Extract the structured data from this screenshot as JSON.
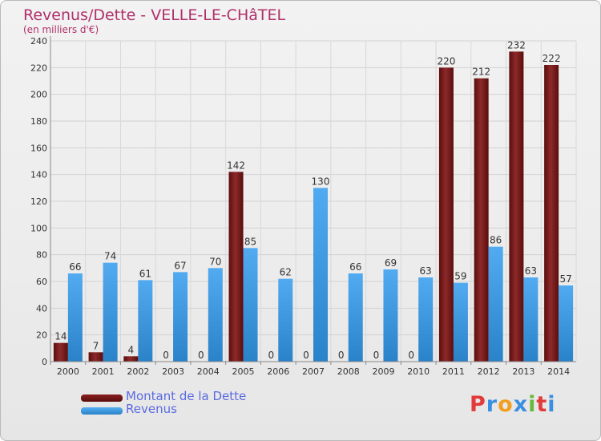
{
  "header": {
    "title": "Revenus/Dette - VELLE-LE-CHâTEL",
    "subtitle": "(en milliers d'€)"
  },
  "legend": {
    "items": [
      {
        "label": "Montant de la Dette",
        "color": "#7a1a1a"
      },
      {
        "label": "Revenus",
        "color": "#3d9de6"
      }
    ]
  },
  "logo": {
    "letters": [
      "P",
      "r",
      "o",
      "x",
      "i",
      "t",
      "i"
    ],
    "colors": [
      "#e23b3b",
      "#3b8fe2",
      "#f0a020",
      "#3b8fe2",
      "#69b83a",
      "#e23b3b",
      "#3b8fe2"
    ]
  },
  "chart_data": {
    "type": "bar",
    "categories": [
      "2000",
      "2001",
      "2002",
      "2003",
      "2004",
      "2005",
      "2006",
      "2007",
      "2008",
      "2009",
      "2010",
      "2011",
      "2012",
      "2013",
      "2014"
    ],
    "series": [
      {
        "name": "Montant de la Dette",
        "values": [
          14,
          7,
          4,
          0,
          0,
          142,
          0,
          0,
          0,
          0,
          0,
          220,
          212,
          232,
          222
        ],
        "color": "#7a1a1a"
      },
      {
        "name": "Revenus",
        "values": [
          66,
          74,
          61,
          67,
          70,
          85,
          62,
          130,
          66,
          69,
          63,
          59,
          86,
          63,
          57
        ],
        "color": "#3d9de6"
      }
    ],
    "yticks": [
      0,
      20,
      40,
      60,
      80,
      100,
      120,
      140,
      160,
      180,
      200,
      220,
      240
    ],
    "ylim": [
      0,
      240
    ],
    "grid": true
  }
}
